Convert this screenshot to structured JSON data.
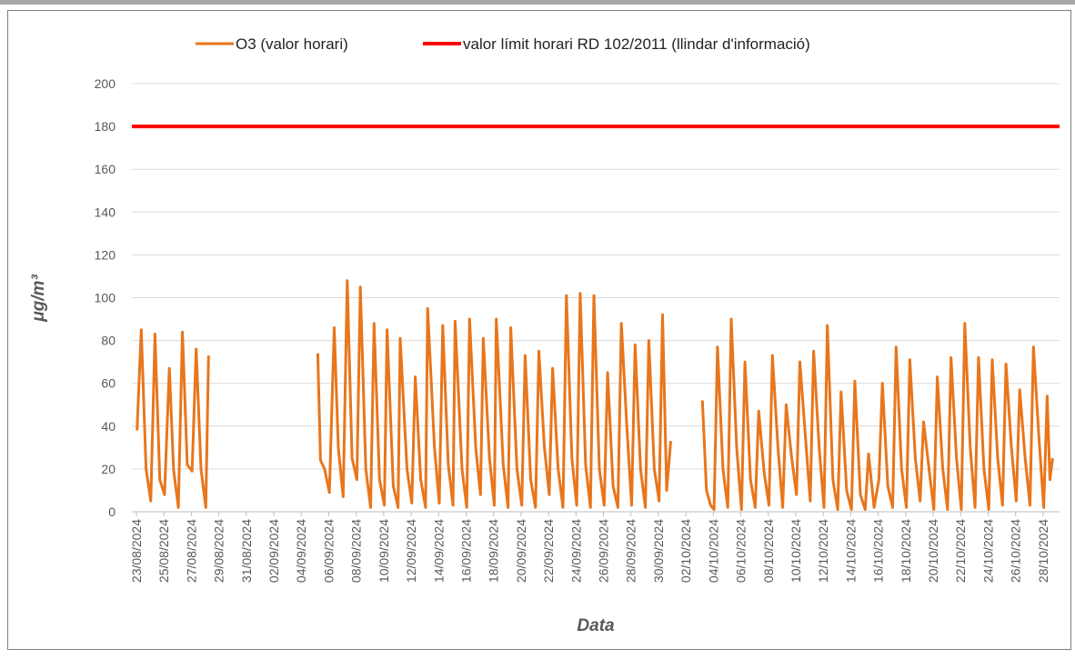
{
  "chart_data": {
    "type": "line",
    "ylabel": "μg/m³",
    "xlabel": "Data",
    "xlim": [
      -0.33,
      67.2
    ],
    "ylim": [
      0,
      200
    ],
    "yticks": [
      0,
      20,
      40,
      60,
      80,
      100,
      120,
      140,
      160,
      180,
      200
    ],
    "grid": true,
    "legend": "top",
    "xticks": [
      {
        "value": 0,
        "label": "23/08/2024"
      },
      {
        "value": 2,
        "label": "25/08/2024"
      },
      {
        "value": 4,
        "label": "27/08/2024"
      },
      {
        "value": 6,
        "label": "29/08/2024"
      },
      {
        "value": 8,
        "label": "31/08/2024"
      },
      {
        "value": 10,
        "label": "02/09/2024"
      },
      {
        "value": 12,
        "label": "04/09/2024"
      },
      {
        "value": 14,
        "label": "06/09/2024"
      },
      {
        "value": 16,
        "label": "08/09/2024"
      },
      {
        "value": 18,
        "label": "10/09/2024"
      },
      {
        "value": 20,
        "label": "12/09/2024"
      },
      {
        "value": 22,
        "label": "14/09/2024"
      },
      {
        "value": 24,
        "label": "16/09/2024"
      },
      {
        "value": 26,
        "label": "18/09/2024"
      },
      {
        "value": 28,
        "label": "20/09/2024"
      },
      {
        "value": 30,
        "label": "22/09/2024"
      },
      {
        "value": 32,
        "label": "24/09/2024"
      },
      {
        "value": 34,
        "label": "26/09/2024"
      },
      {
        "value": 36,
        "label": "28/09/2024"
      },
      {
        "value": 38,
        "label": "30/09/2024"
      },
      {
        "value": 40,
        "label": "02/10/2024"
      },
      {
        "value": 42,
        "label": "04/10/2024"
      },
      {
        "value": 44,
        "label": "06/10/2024"
      },
      {
        "value": 46,
        "label": "08/10/2024"
      },
      {
        "value": 48,
        "label": "10/10/2024"
      },
      {
        "value": 50,
        "label": "12/10/2024"
      },
      {
        "value": 52,
        "label": "14/10/2024"
      },
      {
        "value": 54,
        "label": "16/10/2024"
      },
      {
        "value": 56,
        "label": "18/10/2024"
      },
      {
        "value": 58,
        "label": "20/10/2024"
      },
      {
        "value": 60,
        "label": "22/10/2024"
      },
      {
        "value": 62,
        "label": "24/10/2024"
      },
      {
        "value": 64,
        "label": "26/10/2024"
      },
      {
        "value": 66,
        "label": "28/10/2024"
      }
    ],
    "series": [
      {
        "name": "O3 (valor horari)",
        "color": "#e8761c",
        "x": [
          0.05,
          0.35,
          0.7,
          1.05,
          1.35,
          1.7,
          2.05,
          2.4,
          2.7,
          3.05,
          3.35,
          3.7,
          4.05,
          4.35,
          4.7,
          5.05,
          5.25,
          9.0,
          13.2,
          13.4,
          13.7,
          14.05,
          14.4,
          14.7,
          15.05,
          15.35,
          15.7,
          16.05,
          16.3,
          16.7,
          17.05,
          17.3,
          17.7,
          18.05,
          18.25,
          18.7,
          19.05,
          19.2,
          19.7,
          20.05,
          20.3,
          20.7,
          21.05,
          21.2,
          21.7,
          22.05,
          22.3,
          22.7,
          23.05,
          23.2,
          23.7,
          24.05,
          24.25,
          24.7,
          25.05,
          25.25,
          25.7,
          26.05,
          26.2,
          26.7,
          27.05,
          27.25,
          27.7,
          28.05,
          28.3,
          28.7,
          29.05,
          29.3,
          29.7,
          30.05,
          30.3,
          30.7,
          31.05,
          31.3,
          31.7,
          32.05,
          32.3,
          32.7,
          33.05,
          33.3,
          33.7,
          34.05,
          34.3,
          34.7,
          35.05,
          35.3,
          35.7,
          36.05,
          36.3,
          36.7,
          37.05,
          37.3,
          37.7,
          38.05,
          38.3,
          38.6,
          38.9,
          40.0,
          41.2,
          41.5,
          41.8,
          42.05,
          42.3,
          42.7,
          43.05,
          43.3,
          43.7,
          44.05,
          44.3,
          44.7,
          45.05,
          45.3,
          45.7,
          46.05,
          46.3,
          46.7,
          47.05,
          47.3,
          47.7,
          48.05,
          48.3,
          48.7,
          49.05,
          49.3,
          49.7,
          50.05,
          50.3,
          50.7,
          51.05,
          51.3,
          51.7,
          52.05,
          52.3,
          52.7,
          53.05,
          53.3,
          53.7,
          54.05,
          54.3,
          54.7,
          55.05,
          55.3,
          55.7,
          56.05,
          56.3,
          56.7,
          57.05,
          57.3,
          57.7,
          58.05,
          58.3,
          58.7,
          59.05,
          59.3,
          59.7,
          60.05,
          60.3,
          60.7,
          61.05,
          61.3,
          61.7,
          62.05,
          62.3,
          62.7,
          63.05,
          63.3,
          63.7,
          64.05,
          64.3,
          64.7,
          65.05,
          65.3,
          65.7,
          66.05,
          66.3,
          66.5,
          66.7
        ],
        "values": [
          38,
          85,
          20,
          5,
          83,
          15,
          8,
          67,
          20,
          2,
          84,
          22,
          19,
          76,
          20,
          2,
          73,
          null,
          74,
          24,
          20,
          9,
          86,
          30,
          7,
          108,
          25,
          15,
          105,
          20,
          2,
          88,
          15,
          3,
          85,
          12,
          2,
          81,
          20,
          4,
          63,
          15,
          2,
          95,
          30,
          4,
          87,
          22,
          3,
          89,
          20,
          2,
          90,
          30,
          8,
          81,
          25,
          3,
          90,
          22,
          2,
          86,
          20,
          3,
          73,
          15,
          2,
          75,
          30,
          8,
          67,
          20,
          2,
          101,
          25,
          3,
          102,
          22,
          2,
          101,
          20,
          3,
          65,
          12,
          2,
          88,
          40,
          3,
          78,
          20,
          2,
          80,
          20,
          5,
          92,
          10,
          33,
          null,
          52,
          10,
          3,
          1,
          77,
          20,
          2,
          90,
          30,
          1,
          70,
          15,
          2,
          47,
          18,
          3,
          73,
          30,
          2,
          50,
          25,
          8,
          70,
          35,
          5,
          75,
          30,
          2,
          87,
          15,
          1,
          56,
          10,
          1,
          61,
          8,
          1,
          27,
          2,
          15,
          60,
          12,
          2,
          77,
          20,
          2,
          71,
          25,
          5,
          42,
          20,
          1,
          63,
          20,
          1,
          72,
          25,
          1,
          88,
          30,
          2,
          72,
          20,
          1,
          71,
          25,
          3,
          69,
          30,
          5,
          57,
          25,
          3,
          77,
          35,
          2,
          54,
          15,
          25
        ]
      },
      {
        "name": "valor límit horari RD 102/2011 (llindar d'informació)",
        "color": "#ff0000",
        "x": [
          -0.33,
          67.2
        ],
        "values": [
          180,
          180
        ]
      }
    ]
  }
}
